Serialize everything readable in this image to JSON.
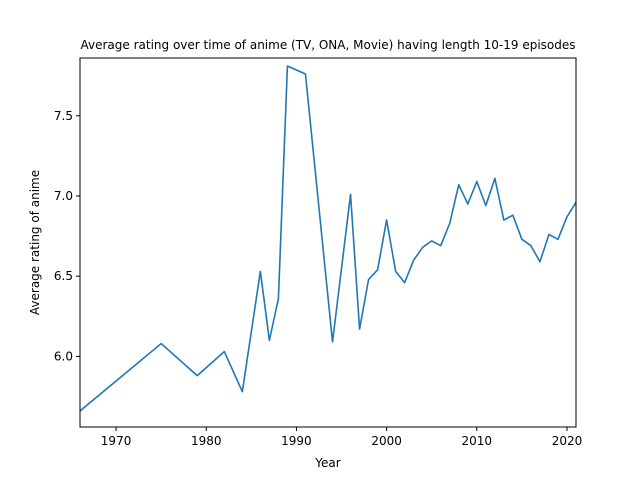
{
  "chart_data": {
    "type": "line",
    "title": "Average rating over time of anime (TV, ONA, Movie) having length 10-19 episodes",
    "xlabel": "Year",
    "ylabel": "Average rating of anime",
    "xlim": [
      1966,
      2021
    ],
    "ylim": [
      5.56,
      7.86
    ],
    "xticks": [
      1970,
      1980,
      1990,
      2000,
      2010,
      2020
    ],
    "yticks": [
      6.0,
      6.5,
      7.0,
      7.5
    ],
    "grid": false,
    "colors": {
      "series": "#1f77b4"
    },
    "series": [
      {
        "x": [
          1966,
          1975,
          1979,
          1982,
          1984,
          1986,
          1987,
          1988,
          1989,
          1991,
          1994,
          1996,
          1997,
          1998,
          1999,
          2000,
          2001,
          2002,
          2003,
          2004,
          2005,
          2006,
          2007,
          2008,
          2009,
          2010,
          2011,
          2012,
          2013,
          2014,
          2015,
          2016,
          2017,
          2018,
          2019,
          2020,
          2021
        ],
        "values": [
          5.66,
          6.08,
          5.88,
          6.03,
          5.78,
          6.53,
          6.1,
          6.36,
          7.81,
          7.76,
          6.09,
          7.01,
          6.17,
          6.48,
          6.54,
          6.85,
          6.53,
          6.46,
          6.6,
          6.68,
          6.72,
          6.69,
          6.83,
          7.07,
          6.95,
          7.09,
          6.94,
          7.11,
          6.85,
          6.88,
          6.73,
          6.69,
          6.59,
          6.76,
          6.73,
          6.87,
          6.96
        ]
      }
    ]
  }
}
